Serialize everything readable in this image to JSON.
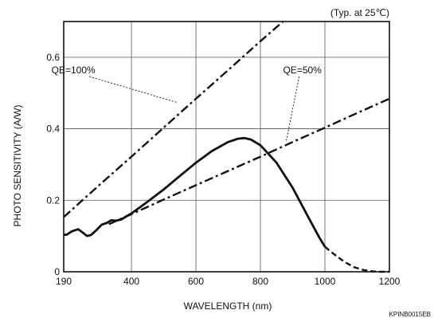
{
  "chart_data": {
    "type": "line",
    "note": "(Typ. at 25℃)",
    "figure_code": "KPINB0015EB",
    "xlabel": "WAVELENGTH (nm)",
    "ylabel": "PHOTO SENSITIVITY (A/W)",
    "xlim": [
      190,
      1200
    ],
    "ylim": [
      0,
      0.7
    ],
    "x_ticks": [
      190,
      400,
      600,
      800,
      1000,
      1200
    ],
    "y_ticks": [
      {
        "value": 0,
        "label": "0"
      },
      {
        "value": 0.2,
        "label": "0.2"
      },
      {
        "value": 0.4,
        "label": "0.4"
      },
      {
        "value": 0.6,
        "label": "0.6"
      }
    ],
    "grid": true,
    "series": [
      {
        "name": "QE=100%",
        "style": "dash-dot",
        "x": [
          190,
          300,
          400,
          500,
          600,
          700,
          800,
          870
        ],
        "y": [
          0.153,
          0.242,
          0.322,
          0.403,
          0.484,
          0.564,
          0.645,
          0.7
        ]
      },
      {
        "name": "QE=50%",
        "style": "dash-dot",
        "x": [
          330,
          400,
          500,
          600,
          700,
          800,
          900,
          1000,
          1100,
          1200
        ],
        "y": [
          0.133,
          0.161,
          0.202,
          0.242,
          0.282,
          0.322,
          0.363,
          0.403,
          0.444,
          0.484
        ]
      },
      {
        "name": "",
        "style": "solid",
        "x": [
          190,
          200,
          215,
          235,
          250,
          262,
          275,
          292,
          308,
          322,
          338,
          352,
          368,
          384,
          400,
          450,
          500,
          550,
          600,
          650,
          700,
          730,
          750,
          770,
          800,
          850,
          900,
          950,
          980,
          1000
        ],
        "y": [
          0.103,
          0.104,
          0.113,
          0.119,
          0.109,
          0.1,
          0.103,
          0.117,
          0.132,
          0.136,
          0.144,
          0.143,
          0.146,
          0.155,
          0.163,
          0.196,
          0.23,
          0.268,
          0.305,
          0.338,
          0.363,
          0.372,
          0.374,
          0.37,
          0.354,
          0.305,
          0.235,
          0.15,
          0.1,
          0.07
        ]
      },
      {
        "name": "",
        "style": "dashed",
        "x": [
          1000,
          1030,
          1060,
          1090,
          1120,
          1150,
          1175,
          1200
        ],
        "y": [
          0.07,
          0.048,
          0.028,
          0.013,
          0.005,
          0.001,
          0.0,
          0.0
        ]
      }
    ],
    "annotations": [
      {
        "text": "QE=100%",
        "series": 0,
        "label_x": 220,
        "label_y": 0.555,
        "target_x": 540,
        "target_y": 0.474
      },
      {
        "text": "QE=50%",
        "series": 1,
        "label_x": 930,
        "label_y": 0.555,
        "target_x": 880,
        "target_y": 0.365
      }
    ]
  }
}
